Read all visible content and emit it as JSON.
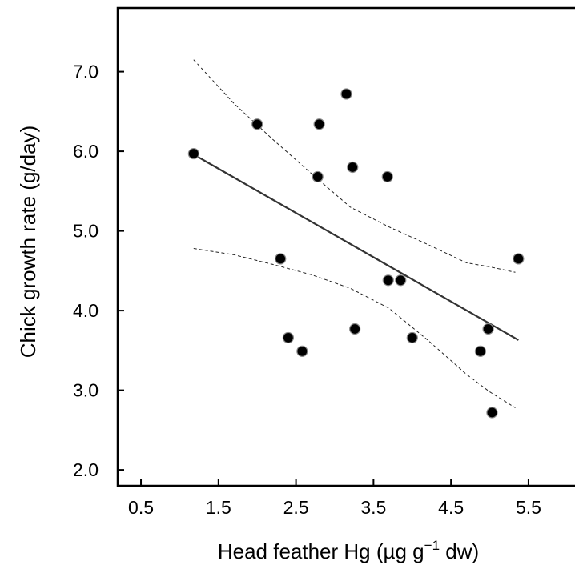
{
  "chart_data": {
    "type": "scatter",
    "xlabel_main": "Head feather Hg (µg g",
    "xlabel_sup": "−1",
    "xlabel_end": " dw)",
    "ylabel": "Chick growth rate (g/day)",
    "xlim": [
      0.2,
      6.1
    ],
    "ylim": [
      1.8,
      7.8
    ],
    "x_ticks": [
      0.5,
      1.5,
      2.5,
      3.5,
      4.5,
      5.5
    ],
    "x_tick_labels": [
      "0.5",
      "1.5",
      "2.5",
      "3.5",
      "4.5",
      "5.5"
    ],
    "y_ticks": [
      2.0,
      3.0,
      4.0,
      5.0,
      6.0,
      7.0
    ],
    "y_tick_labels": [
      "2.0",
      "3.0",
      "4.0",
      "5.0",
      "6.0",
      "7.0"
    ],
    "points": [
      {
        "x": 1.18,
        "y": 5.97
      },
      {
        "x": 2.0,
        "y": 6.34
      },
      {
        "x": 2.3,
        "y": 4.65
      },
      {
        "x": 2.4,
        "y": 3.66
      },
      {
        "x": 2.58,
        "y": 3.49
      },
      {
        "x": 2.78,
        "y": 5.68
      },
      {
        "x": 2.8,
        "y": 6.34
      },
      {
        "x": 3.15,
        "y": 6.72
      },
      {
        "x": 3.23,
        "y": 5.8
      },
      {
        "x": 3.26,
        "y": 3.77
      },
      {
        "x": 3.68,
        "y": 5.68
      },
      {
        "x": 3.69,
        "y": 4.38
      },
      {
        "x": 3.85,
        "y": 4.38
      },
      {
        "x": 4.0,
        "y": 3.66
      },
      {
        "x": 4.88,
        "y": 3.49
      },
      {
        "x": 4.98,
        "y": 3.77
      },
      {
        "x": 5.03,
        "y": 2.72
      },
      {
        "x": 5.37,
        "y": 4.65
      }
    ],
    "regression": {
      "x": [
        1.18,
        5.37
      ],
      "y": [
        5.96,
        3.63
      ]
    },
    "ci_upper": {
      "x": [
        1.18,
        1.7,
        2.2,
        2.7,
        3.2,
        3.7,
        4.2,
        4.7,
        5.0,
        5.33
      ],
      "y": [
        7.15,
        6.6,
        6.15,
        5.72,
        5.3,
        5.05,
        4.83,
        4.6,
        4.55,
        4.48
      ]
    },
    "ci_lower": {
      "x": [
        1.18,
        1.7,
        2.2,
        2.7,
        3.2,
        3.7,
        4.2,
        4.7,
        5.0,
        5.33
      ],
      "y": [
        4.78,
        4.7,
        4.58,
        4.45,
        4.28,
        4.03,
        3.63,
        3.2,
        2.98,
        2.78
      ]
    }
  }
}
